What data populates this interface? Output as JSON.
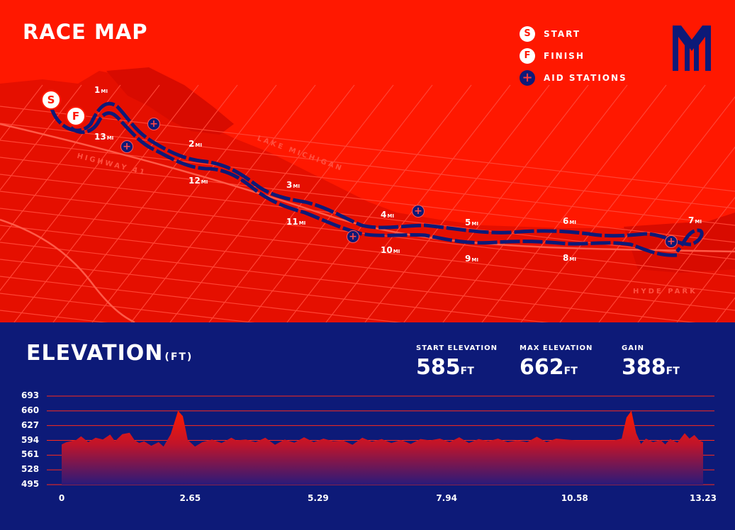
{
  "map": {
    "title": "RACE MAP",
    "legend": [
      {
        "icon": "S",
        "icon_name": "start-icon",
        "label": "START"
      },
      {
        "icon": "F",
        "icon_name": "finish-icon",
        "label": "FINISH"
      },
      {
        "icon": "+",
        "icon_name": "aid-station-icon",
        "label": "AID STATIONS"
      }
    ],
    "start_marker": "S",
    "finish_marker": "F",
    "aid_symbol": "+",
    "mile_unit": "MI",
    "miles": [
      {
        "n": "1"
      },
      {
        "n": "2"
      },
      {
        "n": "3"
      },
      {
        "n": "4"
      },
      {
        "n": "5"
      },
      {
        "n": "6"
      },
      {
        "n": "7"
      },
      {
        "n": "8"
      },
      {
        "n": "9"
      },
      {
        "n": "10"
      },
      {
        "n": "11"
      },
      {
        "n": "12"
      },
      {
        "n": "13"
      }
    ],
    "place_names": [
      "LAKE MICHIGAN",
      "HIGHWAY 41",
      "HYDE PARK"
    ],
    "colors": {
      "map_bg": "#ff1800",
      "route": "#0d1a78",
      "streets": "#ff4a3a"
    }
  },
  "elevation": {
    "title": "ELEVATION",
    "unit": "(FT)",
    "stats": [
      {
        "label": "START ELEVATION",
        "value": "585",
        "unit": "FT"
      },
      {
        "label": "MAX ELEVATION",
        "value": "662",
        "unit": "FT"
      },
      {
        "label": "GAIN",
        "value": "388",
        "unit": "FT"
      }
    ]
  },
  "chart_data": {
    "type": "area",
    "title": "ELEVATION",
    "xlabel": "",
    "ylabel": "",
    "x_ticks": [
      "0",
      "2.65",
      "5.29",
      "7.94",
      "10.58",
      "13.23"
    ],
    "y_ticks": [
      "693",
      "660",
      "627",
      "594",
      "561",
      "528",
      "495"
    ],
    "xlim": [
      0,
      13.23
    ],
    "ylim": [
      495,
      693
    ],
    "grid": true,
    "series": [
      {
        "x": [
          0,
          0.1,
          0.3,
          0.4,
          0.55,
          0.7,
          0.85,
          1.0,
          1.1,
          1.25,
          1.4,
          1.5,
          1.6,
          1.7,
          1.85,
          2.0,
          2.1,
          2.25,
          2.4,
          2.5,
          2.6,
          2.75,
          2.9,
          3.1,
          3.3,
          3.5,
          3.6,
          3.8,
          4.0,
          4.2,
          4.4,
          4.6,
          4.8,
          5.0,
          5.2,
          5.4,
          5.6,
          5.8,
          6.0,
          6.2,
          6.4,
          6.6,
          6.8,
          7.0,
          7.2,
          7.4,
          7.6,
          7.8,
          8.0,
          8.2,
          8.4,
          8.6,
          8.8,
          9.0,
          9.2,
          9.4,
          9.6,
          9.8,
          10.0,
          10.2,
          10.4,
          10.6,
          10.8,
          11.0,
          11.2,
          11.4,
          11.55,
          11.65,
          11.75,
          11.85,
          11.95,
          12.05,
          12.2,
          12.35,
          12.45,
          12.55,
          12.7,
          12.85,
          12.95,
          13.05,
          13.15,
          13.23
        ],
        "values": [
          585,
          590,
          595,
          603,
          590,
          600,
          596,
          607,
          592,
          608,
          611,
          595,
          588,
          592,
          582,
          590,
          580,
          608,
          660,
          648,
          595,
          580,
          590,
          596,
          588,
          600,
          594,
          596,
          590,
          600,
          584,
          596,
          589,
          601,
          590,
          598,
          592,
          594,
          584,
          600,
          591,
          597,
          588,
          595,
          586,
          597,
          594,
          598,
          590,
          601,
          588,
          597,
          592,
          598,
          590,
          594,
          590,
          602,
          590,
          598,
          596,
          594,
          594,
          594,
          594,
          594,
          598,
          645,
          660,
          610,
          586,
          598,
          590,
          595,
          585,
          597,
          589,
          610,
          598,
          606,
          594,
          590
        ]
      }
    ]
  }
}
